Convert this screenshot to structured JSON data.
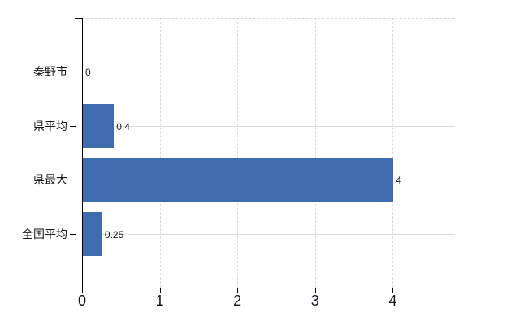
{
  "chart_data": {
    "type": "bar",
    "orientation": "horizontal",
    "title": "",
    "categories": [
      "秦野市",
      "県平均",
      "県最大",
      "全国平均"
    ],
    "values": [
      0,
      0.4,
      4,
      0.25
    ],
    "value_labels": [
      "0",
      "0.4",
      "4",
      "0.25"
    ],
    "xlabel": "",
    "ylabel": "",
    "xlim": [
      0,
      4.8
    ],
    "x_ticks": [
      0,
      1,
      2,
      3,
      4
    ],
    "x_tick_labels": [
      "0",
      "1",
      "2",
      "3",
      "4"
    ],
    "grid": {
      "vertical_style": "dashed",
      "horizontal_style": "solid"
    },
    "legend": "none",
    "bar_color": "#3e6cad"
  },
  "colors": {
    "background": "#ffffff",
    "bar": "#3e6cad",
    "axis": "#000000",
    "grid_vertical": "#d9d9d9",
    "grid_horizontal": "#d5ded5",
    "text": "#1a1a1a"
  }
}
